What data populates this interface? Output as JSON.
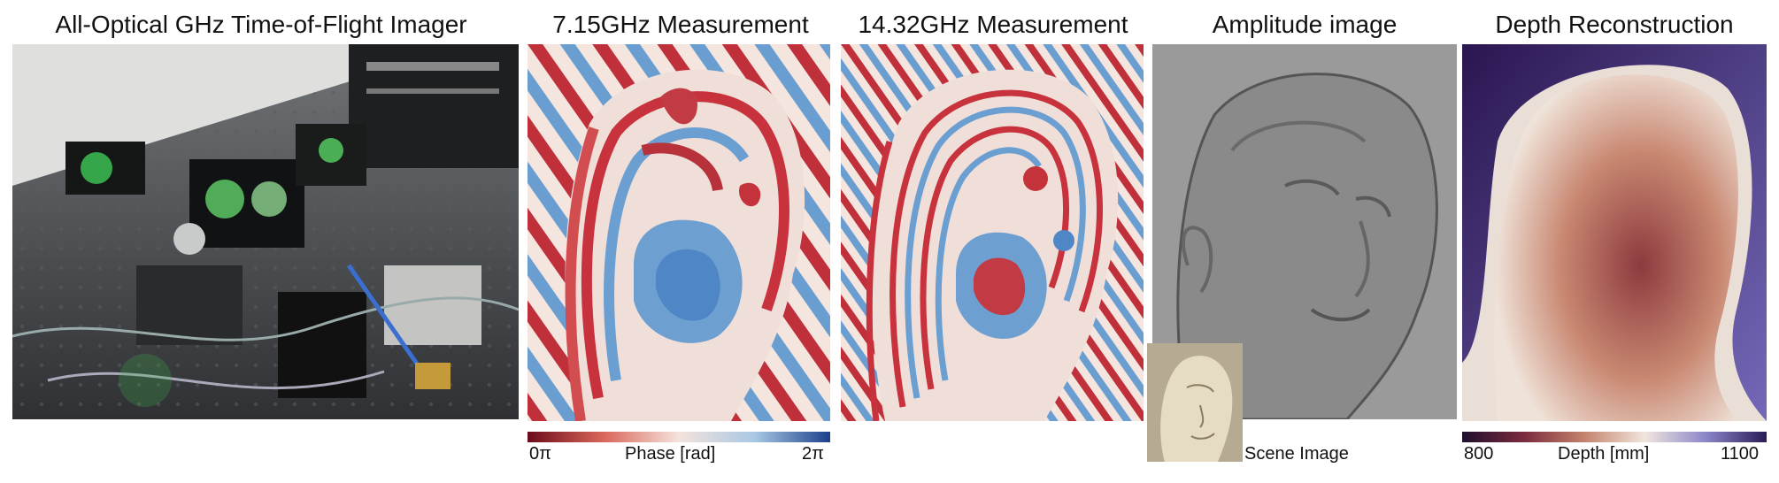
{
  "panels": {
    "setup": {
      "title": "All-Optical GHz Time-of-Flight Imager"
    },
    "phase1": {
      "title": "7.15GHz Measurement"
    },
    "phase2": {
      "title": "14.32GHz Measurement"
    },
    "amplitude": {
      "title": "Amplitude image",
      "inset_label": "Scene Image"
    },
    "depth": {
      "title": "Depth Reconstruction"
    }
  },
  "colorbars": {
    "phase": {
      "min_label": "0π",
      "mid_label": "Phase [rad]",
      "max_label": "2π",
      "colors": [
        "#6b0b1a",
        "#d9665a",
        "#f5e3dc",
        "#a8c8e4",
        "#1b3f8a"
      ]
    },
    "depth": {
      "min_label": "800",
      "mid_label": "Depth [mm]",
      "max_label": "1100",
      "colors": [
        "#1e0f2e",
        "#7a2a3e",
        "#c4826c",
        "#f1e6de",
        "#8b86c9",
        "#2a1b55"
      ]
    }
  }
}
